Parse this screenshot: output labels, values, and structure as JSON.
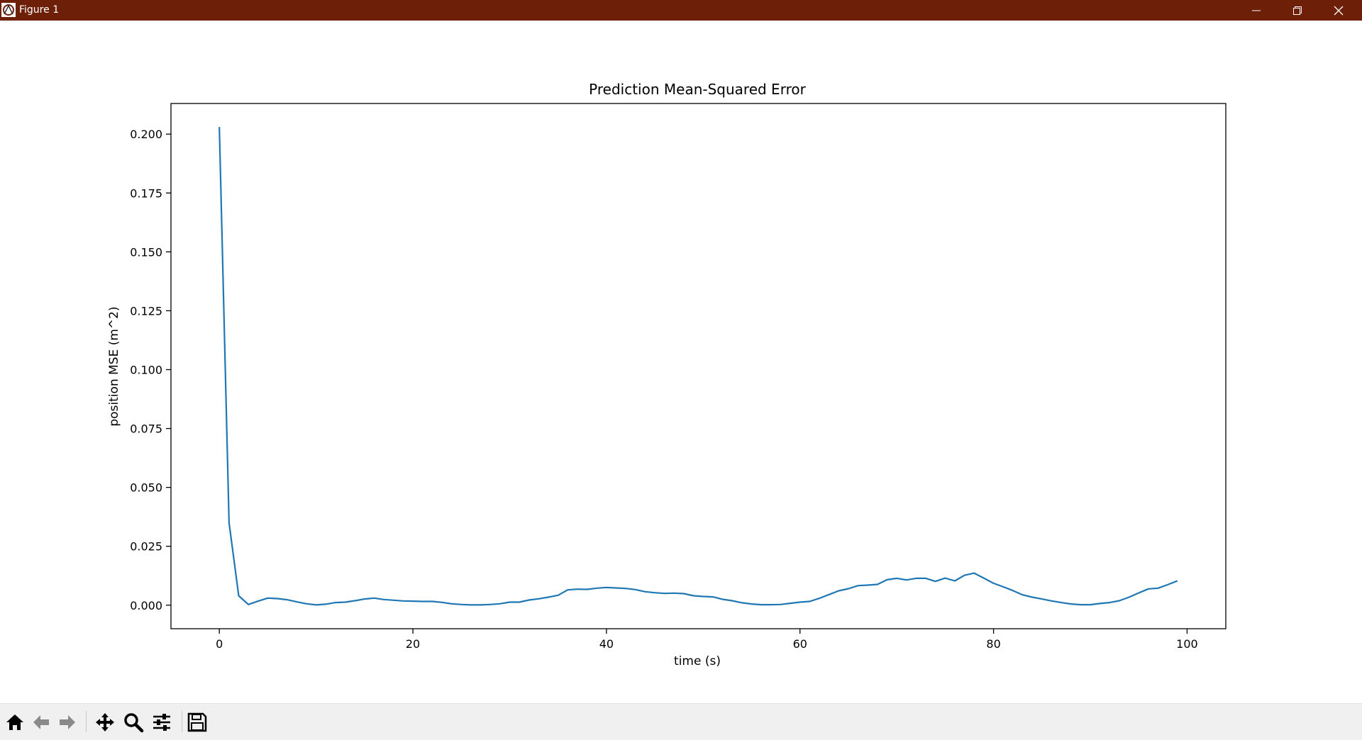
{
  "window": {
    "title": "Figure 1",
    "titlebar_color": "#6e1f07"
  },
  "toolbar": {
    "buttons": [
      {
        "name": "home-icon",
        "tooltip": "Home"
      },
      {
        "name": "back-arrow-icon",
        "tooltip": "Back"
      },
      {
        "name": "forward-arrow-icon",
        "tooltip": "Forward"
      },
      {
        "name": "pan-move-icon",
        "tooltip": "Pan"
      },
      {
        "name": "zoom-magnifier-icon",
        "tooltip": "Zoom"
      },
      {
        "name": "configure-subplots-icon",
        "tooltip": "Configure subplots"
      },
      {
        "name": "save-floppy-icon",
        "tooltip": "Save"
      }
    ]
  },
  "chart_data": {
    "type": "line",
    "title": "Prediction Mean-Squared Error",
    "xlabel": "time (s)",
    "ylabel": "position MSE (m^2)",
    "xlim": [
      -5,
      104
    ],
    "ylim": [
      -0.01,
      0.213
    ],
    "x_ticks": [
      0,
      20,
      40,
      60,
      80,
      100
    ],
    "y_ticks": [
      0.0,
      0.025,
      0.05,
      0.075,
      0.1,
      0.125,
      0.15,
      0.175,
      0.2
    ],
    "y_tick_labels": [
      "0.000",
      "0.025",
      "0.050",
      "0.075",
      "0.100",
      "0.125",
      "0.150",
      "0.175",
      "0.200"
    ],
    "x_tick_labels": [
      "0",
      "20",
      "40",
      "60",
      "80",
      "100"
    ],
    "grid": false,
    "line_color": "#1f77b4",
    "series": [
      {
        "x": [
          0,
          1,
          2,
          3,
          4,
          5,
          6,
          7,
          8,
          9,
          10,
          11,
          12,
          13,
          14,
          15,
          16,
          17,
          18,
          19,
          20,
          21,
          22,
          23,
          24,
          25,
          26,
          27,
          28,
          29,
          30,
          31,
          32,
          33,
          34,
          35,
          36,
          37,
          38,
          39,
          40,
          41,
          42,
          43,
          44,
          45,
          46,
          47,
          48,
          49,
          50,
          51,
          52,
          53,
          54,
          55,
          56,
          57,
          58,
          59,
          60,
          61,
          62,
          63,
          64,
          65,
          66,
          67,
          68,
          69,
          70,
          71,
          72,
          73,
          74,
          75,
          76,
          77,
          78,
          79,
          80,
          81,
          82,
          83,
          84,
          85,
          86,
          87,
          88,
          89,
          90,
          91,
          92,
          93,
          94,
          95,
          96,
          97,
          98,
          99
        ],
        "y": [
          0.203,
          0.035,
          0.004,
          0.0003,
          0.0017,
          0.003,
          0.0028,
          0.0023,
          0.0014,
          0.0006,
          0.0001,
          0.0004,
          0.0011,
          0.0013,
          0.0019,
          0.0026,
          0.003,
          0.0024,
          0.0021,
          0.0018,
          0.0017,
          0.0016,
          0.0016,
          0.0012,
          0.0006,
          0.0003,
          0.0001,
          0.0001,
          0.0003,
          0.0006,
          0.0013,
          0.0013,
          0.0022,
          0.0027,
          0.0034,
          0.0042,
          0.0065,
          0.0068,
          0.0067,
          0.0072,
          0.0075,
          0.0073,
          0.0071,
          0.0066,
          0.0057,
          0.0053,
          0.005,
          0.0051,
          0.0049,
          0.004,
          0.0037,
          0.0035,
          0.0025,
          0.0019,
          0.001,
          0.0005,
          0.0002,
          0.0002,
          0.0003,
          0.0008,
          0.0013,
          0.0016,
          0.0029,
          0.0045,
          0.0061,
          0.007,
          0.0083,
          0.0085,
          0.0088,
          0.0108,
          0.0114,
          0.0107,
          0.0114,
          0.0114,
          0.0101,
          0.0115,
          0.0103,
          0.0127,
          0.0136,
          0.0115,
          0.0093,
          0.0078,
          0.0062,
          0.0044,
          0.0034,
          0.0026,
          0.0018,
          0.0011,
          0.0005,
          0.0002,
          0.0002,
          0.0007,
          0.0011,
          0.0019,
          0.0034,
          0.0052,
          0.0069,
          0.0072,
          0.0087,
          0.0103
        ]
      }
    ]
  }
}
